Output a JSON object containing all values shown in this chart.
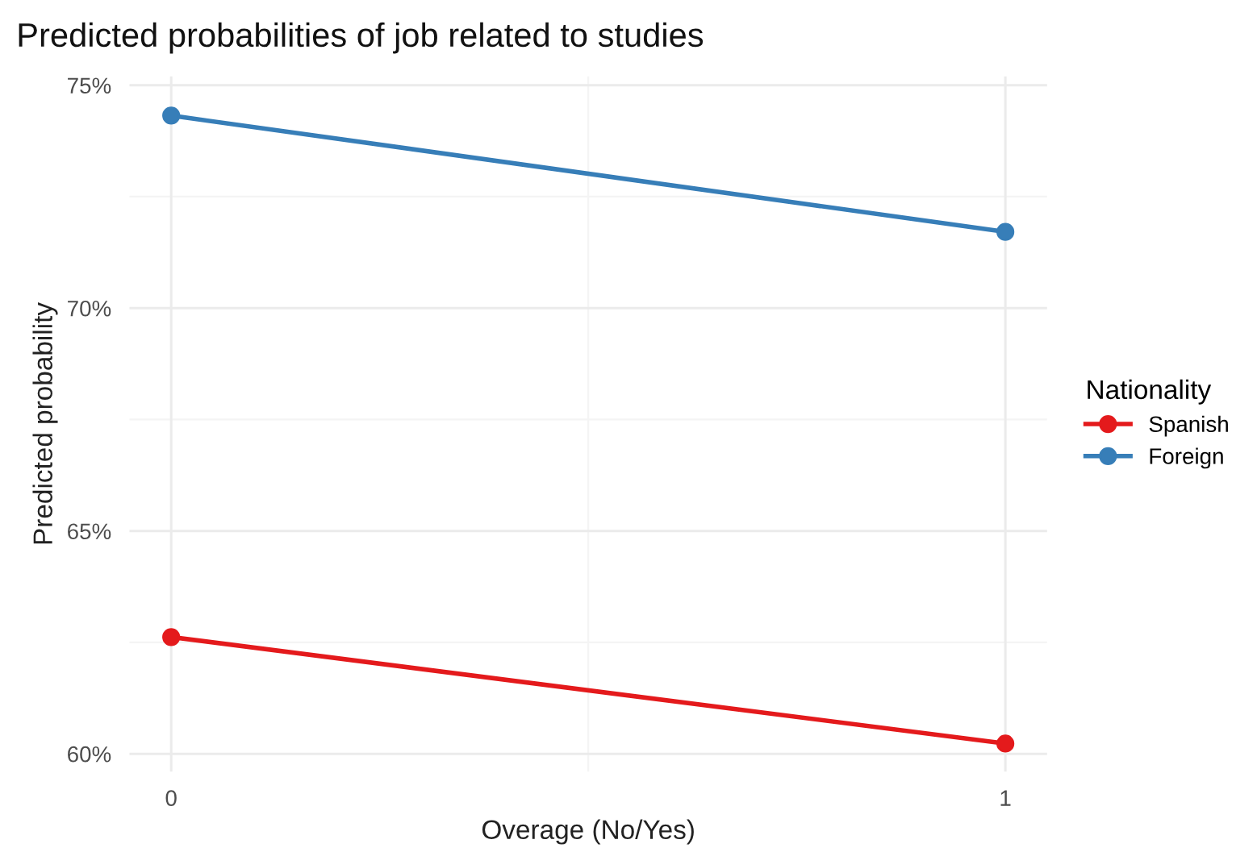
{
  "chart_data": {
    "type": "line",
    "title": "Predicted probabilities of job related to studies",
    "xlabel": "Overage (No/Yes)",
    "ylabel": "Predicted probability",
    "legend_title": "Nationality",
    "x": [
      0,
      1
    ],
    "series": [
      {
        "name": "Spanish",
        "color": "#e41a1c",
        "values": [
          62.62,
          60.23
        ]
      },
      {
        "name": "Foreign",
        "color": "#377eb8",
        "values": [
          74.32,
          71.71
        ]
      }
    ],
    "xlim": [
      -0.05,
      1.05
    ],
    "xticks": [
      0,
      1
    ],
    "ylim": [
      59.6,
      75.2
    ],
    "yticks": [
      {
        "value": 60,
        "label": "60%"
      },
      {
        "value": 65,
        "label": "65%"
      },
      {
        "value": 70,
        "label": "70%"
      },
      {
        "value": 75,
        "label": "75%"
      }
    ],
    "grid": true,
    "legend": "right",
    "marker": "circle",
    "line_style": "solid"
  }
}
